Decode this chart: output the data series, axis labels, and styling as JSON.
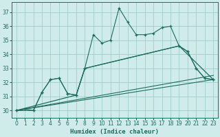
{
  "xlabel": "Humidex (Indice chaleur)",
  "background_color": "#d0ecea",
  "grid_color": "#a0ccc8",
  "line_color": "#1a6b5e",
  "xlim": [
    -0.5,
    23.5
  ],
  "ylim": [
    29.5,
    37.7
  ],
  "yticks": [
    30,
    31,
    32,
    33,
    34,
    35,
    36,
    37
  ],
  "xticks": [
    0,
    1,
    2,
    3,
    4,
    5,
    6,
    7,
    8,
    9,
    10,
    11,
    12,
    13,
    14,
    15,
    16,
    17,
    18,
    19,
    20,
    21,
    22,
    23
  ],
  "series1_x": [
    0,
    1,
    2,
    3,
    4,
    5,
    6,
    7,
    8,
    9,
    10,
    11,
    12,
    13,
    14,
    15,
    16,
    17,
    18,
    19,
    20,
    21,
    22,
    23
  ],
  "series1_y": [
    30.0,
    30.1,
    30.0,
    31.3,
    32.2,
    32.3,
    31.2,
    31.1,
    33.0,
    35.4,
    34.8,
    35.0,
    37.3,
    36.3,
    35.4,
    35.4,
    35.5,
    35.9,
    36.0,
    34.6,
    34.2,
    33.0,
    32.3,
    32.2
  ],
  "series2_x": [
    0,
    2,
    3,
    4,
    5,
    6,
    7,
    8,
    19,
    20,
    21,
    22,
    23
  ],
  "series2_y": [
    30.0,
    30.0,
    31.3,
    32.2,
    32.3,
    31.2,
    31.1,
    33.0,
    34.6,
    34.2,
    33.0,
    32.3,
    32.2
  ],
  "series3_x": [
    0,
    7,
    8,
    19,
    23
  ],
  "series3_y": [
    30.0,
    31.1,
    33.0,
    34.6,
    32.2
  ],
  "series4_x": [
    0,
    23
  ],
  "series4_y": [
    30.0,
    32.2
  ],
  "series5_x": [
    0,
    23
  ],
  "series5_y": [
    30.0,
    32.5
  ]
}
